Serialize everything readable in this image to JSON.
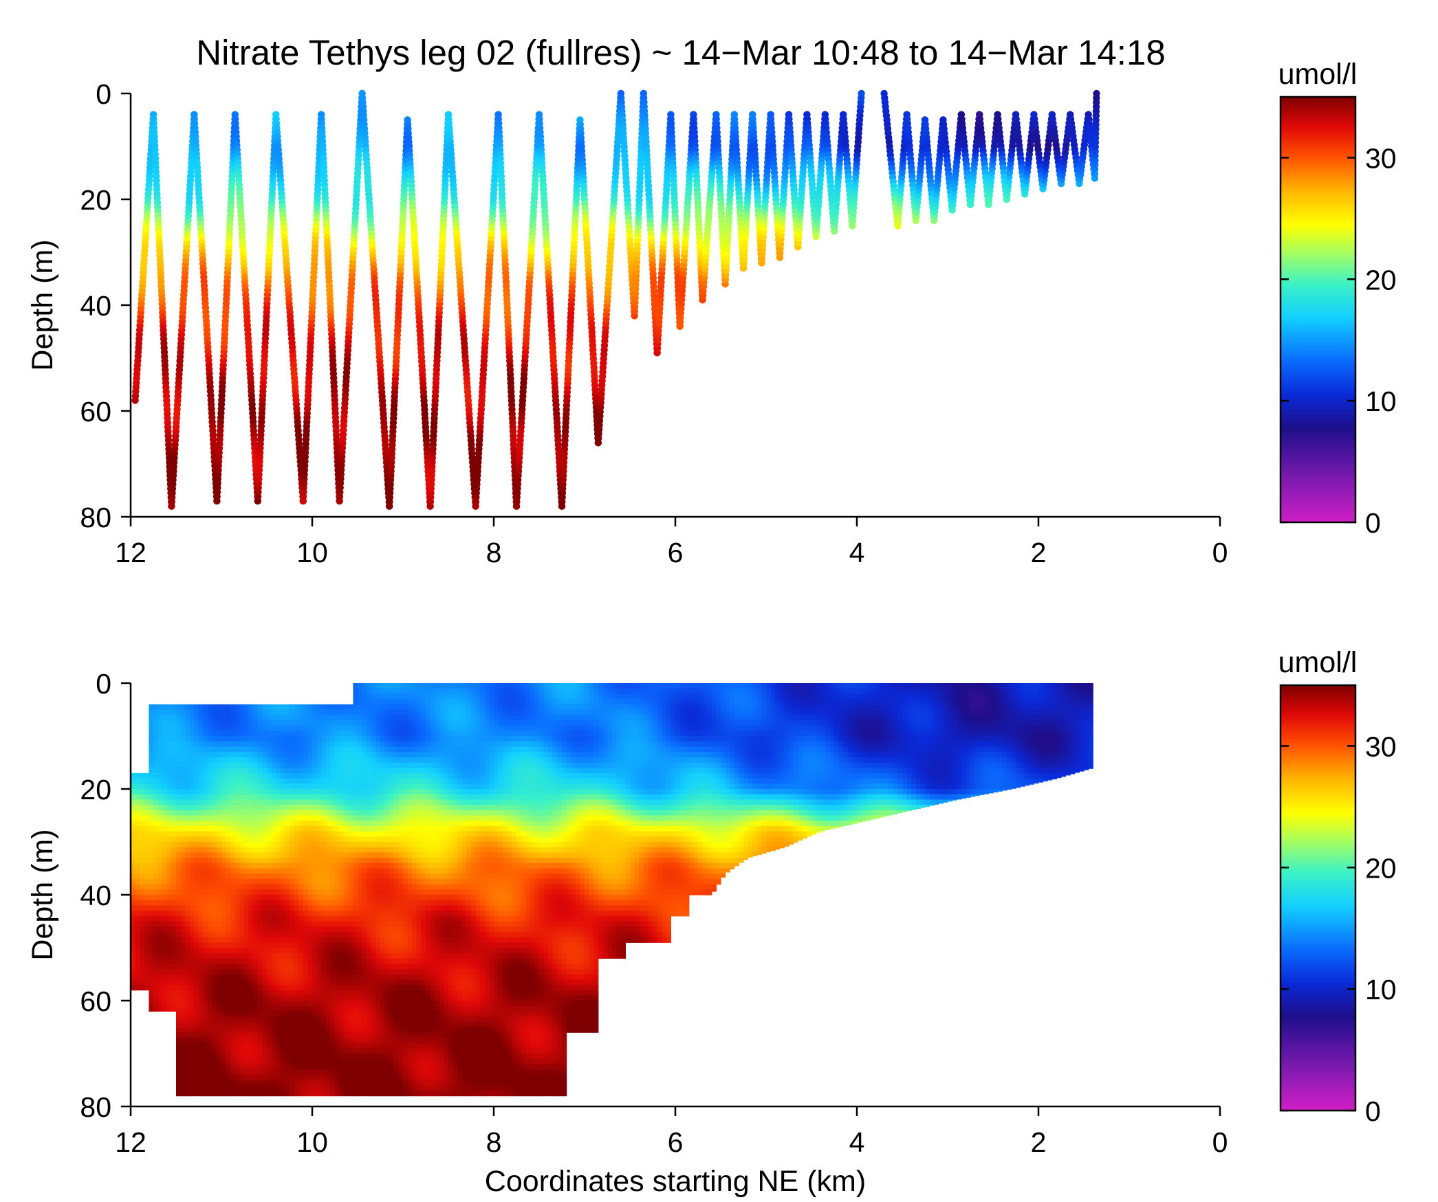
{
  "figure": {
    "title": "Nitrate Tethys leg 02 (fullres) ~ 14−Mar 10:48 to 14−Mar 14:18"
  },
  "chart_data": [
    {
      "type": "scatter",
      "panel": "top",
      "title": "Nitrate Tethys leg 02 (fullres) ~ 14−Mar 10:48 to 14−Mar 14:18",
      "xlabel": "",
      "ylabel": "Depth (m)",
      "xlim": [
        12,
        0
      ],
      "ylim": [
        0,
        80
      ],
      "x_reversed": true,
      "y_reversed": true,
      "xticks": [
        "12",
        "10",
        "8",
        "6",
        "4",
        "2",
        "0"
      ],
      "yticks": [
        "0",
        "20",
        "40",
        "60",
        "80"
      ],
      "colorbar": {
        "label": "umol/l",
        "range": [
          0,
          35
        ],
        "ticks": [
          "0",
          "10",
          "20",
          "30"
        ]
      },
      "profile_turnpoints": [
        {
          "km": 11.95,
          "depth": 58
        },
        {
          "km": 11.75,
          "depth": 4
        },
        {
          "km": 11.55,
          "depth": 78
        },
        {
          "km": 11.3,
          "depth": 4
        },
        {
          "km": 11.05,
          "depth": 77
        },
        {
          "km": 10.85,
          "depth": 4
        },
        {
          "km": 10.6,
          "depth": 77
        },
        {
          "km": 10.4,
          "depth": 4
        },
        {
          "km": 10.1,
          "depth": 77
        },
        {
          "km": 9.9,
          "depth": 4
        },
        {
          "km": 9.7,
          "depth": 77
        },
        {
          "km": 9.45,
          "depth": 0
        },
        {
          "km": 9.15,
          "depth": 78
        },
        {
          "km": 8.95,
          "depth": 5
        },
        {
          "km": 8.7,
          "depth": 78
        },
        {
          "km": 8.5,
          "depth": 4
        },
        {
          "km": 8.2,
          "depth": 78
        },
        {
          "km": 7.95,
          "depth": 4
        },
        {
          "km": 7.75,
          "depth": 78
        },
        {
          "km": 7.5,
          "depth": 4
        },
        {
          "km": 7.25,
          "depth": 78
        },
        {
          "km": 7.05,
          "depth": 5
        },
        {
          "km": 6.85,
          "depth": 66
        },
        {
          "km": 6.6,
          "depth": 0
        },
        {
          "km": 6.45,
          "depth": 42
        },
        {
          "km": 6.35,
          "depth": 0
        },
        {
          "km": 6.2,
          "depth": 49
        },
        {
          "km": 6.05,
          "depth": 4
        },
        {
          "km": 5.95,
          "depth": 44
        },
        {
          "km": 5.8,
          "depth": 4
        },
        {
          "km": 5.7,
          "depth": 39
        },
        {
          "km": 5.55,
          "depth": 4
        },
        {
          "km": 5.45,
          "depth": 36
        },
        {
          "km": 5.35,
          "depth": 4
        },
        {
          "km": 5.25,
          "depth": 33
        },
        {
          "km": 5.15,
          "depth": 4
        },
        {
          "km": 5.05,
          "depth": 32
        },
        {
          "km": 4.95,
          "depth": 4
        },
        {
          "km": 4.85,
          "depth": 31
        },
        {
          "km": 4.75,
          "depth": 4
        },
        {
          "km": 4.65,
          "depth": 29
        },
        {
          "km": 4.55,
          "depth": 4
        },
        {
          "km": 4.45,
          "depth": 27
        },
        {
          "km": 4.35,
          "depth": 4
        },
        {
          "km": 4.25,
          "depth": 26
        },
        {
          "km": 4.15,
          "depth": 4
        },
        {
          "km": 4.05,
          "depth": 25
        },
        {
          "km": 3.95,
          "depth": 0
        },
        {
          "km": 3.7,
          "depth": 0
        },
        {
          "km": 3.55,
          "depth": 25
        },
        {
          "km": 3.45,
          "depth": 4
        },
        {
          "km": 3.35,
          "depth": 24
        },
        {
          "km": 3.25,
          "depth": 5
        },
        {
          "km": 3.15,
          "depth": 24
        },
        {
          "km": 3.05,
          "depth": 5
        },
        {
          "km": 2.95,
          "depth": 22
        },
        {
          "km": 2.85,
          "depth": 4
        },
        {
          "km": 2.75,
          "depth": 21
        },
        {
          "km": 2.65,
          "depth": 4
        },
        {
          "km": 2.55,
          "depth": 21
        },
        {
          "km": 2.45,
          "depth": 4
        },
        {
          "km": 2.35,
          "depth": 20
        },
        {
          "km": 2.25,
          "depth": 4
        },
        {
          "km": 2.15,
          "depth": 19
        },
        {
          "km": 2.05,
          "depth": 4
        },
        {
          "km": 1.95,
          "depth": 18
        },
        {
          "km": 1.85,
          "depth": 4
        },
        {
          "km": 1.75,
          "depth": 17
        },
        {
          "km": 1.65,
          "depth": 4
        },
        {
          "km": 1.55,
          "depth": 17
        },
        {
          "km": 1.45,
          "depth": 4
        },
        {
          "km": 1.38,
          "depth": 16
        },
        {
          "km": 1.36,
          "depth": 0
        }
      ],
      "nitrate_vs_depth": [
        {
          "depth": 0,
          "surface_offshore": 15,
          "surface_nearshore": 9
        },
        {
          "depth": 10,
          "surface_offshore": 15,
          "surface_nearshore": 9
        },
        {
          "depth": 20,
          "value": 19
        },
        {
          "depth": 28,
          "value": 25
        },
        {
          "depth": 35,
          "value": 29
        },
        {
          "depth": 45,
          "value": 32
        },
        {
          "depth": 60,
          "value": 34
        },
        {
          "depth": 80,
          "value": 34.5
        }
      ]
    },
    {
      "type": "heatmap",
      "panel": "bottom",
      "title": "",
      "xlabel": "Coordinates starting NE (km)",
      "ylabel": "Depth (m)",
      "xlim": [
        12,
        0
      ],
      "ylim": [
        0,
        80
      ],
      "x_reversed": true,
      "y_reversed": true,
      "xticks": [
        "12",
        "10",
        "8",
        "6",
        "4",
        "2",
        "0"
      ],
      "yticks": [
        "0",
        "20",
        "40",
        "60",
        "80"
      ],
      "colorbar": {
        "label": "umol/l",
        "range": [
          0,
          35
        ],
        "ticks": [
          "0",
          "10",
          "20",
          "30"
        ]
      },
      "coverage_bottom_depth": [
        {
          "km": 12.0,
          "depth": 58
        },
        {
          "km": 11.8,
          "depth": 58
        },
        {
          "km": 11.8,
          "depth": 62
        },
        {
          "km": 11.5,
          "depth": 62
        },
        {
          "km": 11.5,
          "depth": 78
        },
        {
          "km": 7.2,
          "depth": 78
        },
        {
          "km": 7.2,
          "depth": 66
        },
        {
          "km": 6.85,
          "depth": 66
        },
        {
          "km": 6.85,
          "depth": 52
        },
        {
          "km": 6.55,
          "depth": 52
        },
        {
          "km": 6.55,
          "depth": 49
        },
        {
          "km": 6.05,
          "depth": 49
        },
        {
          "km": 6.05,
          "depth": 44
        },
        {
          "km": 5.85,
          "depth": 44
        },
        {
          "km": 5.85,
          "depth": 40
        },
        {
          "km": 5.6,
          "depth": 40
        },
        {
          "km": 5.45,
          "depth": 36
        },
        {
          "km": 5.2,
          "depth": 33
        },
        {
          "km": 4.8,
          "depth": 31
        },
        {
          "km": 4.4,
          "depth": 28
        },
        {
          "km": 3.9,
          "depth": 26
        },
        {
          "km": 3.4,
          "depth": 24
        },
        {
          "km": 2.9,
          "depth": 22
        },
        {
          "km": 2.3,
          "depth": 20
        },
        {
          "km": 1.8,
          "depth": 18
        },
        {
          "km": 1.4,
          "depth": 16
        }
      ],
      "coverage_top_depth": [
        {
          "km": 11.75,
          "depth": 4
        },
        {
          "km": 9.65,
          "depth": 4
        },
        {
          "km": 9.45,
          "depth": 0
        },
        {
          "km": 1.4,
          "depth": 0
        }
      ],
      "nitrate_vs_depth": [
        {
          "depth": 0,
          "offshore": 14,
          "nearshore": 9
        },
        {
          "depth": 10,
          "offshore": 14,
          "nearshore": 9
        },
        {
          "depth": 20,
          "offshore": 18,
          "nearshore": 12
        },
        {
          "depth": 28,
          "value": 25
        },
        {
          "depth": 35,
          "value": 29
        },
        {
          "depth": 45,
          "value": 32
        },
        {
          "depth": 60,
          "value": 34
        },
        {
          "depth": 80,
          "value": 35
        }
      ]
    }
  ]
}
